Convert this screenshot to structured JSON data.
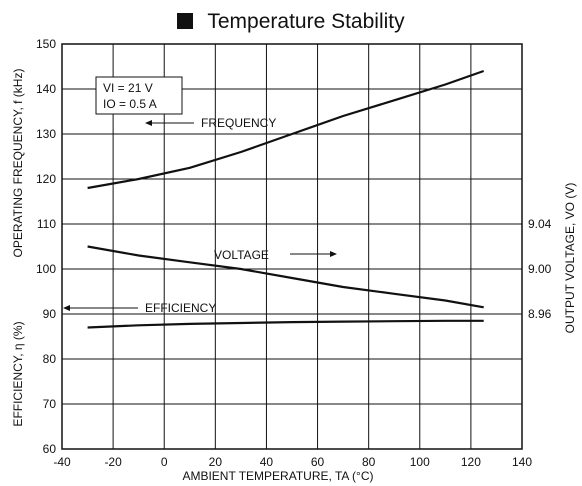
{
  "title": "Temperature Stability",
  "chart_data": {
    "type": "line",
    "xlabel": "AMBIENT TEMPERATURE, TA (°C)",
    "xlim": [
      -40,
      140
    ],
    "xticks": [
      -40,
      -20,
      0,
      20,
      40,
      60,
      80,
      100,
      120,
      140
    ],
    "ylim": [
      60,
      150
    ],
    "yticks": [
      60,
      70,
      80,
      90,
      100,
      110,
      120,
      130,
      140,
      150
    ],
    "ylabel_upper": "OPERATING FREQUENCY, f (kHz)",
    "ylabel_lower": "EFFICIENCY, η (%)",
    "y2label": "OUTPUT VOLTAGE, VO (V)",
    "y2ticks": [
      {
        "label": "9.04",
        "at": 110
      },
      {
        "label": "9.00",
        "at": 100
      },
      {
        "label": "8.96",
        "at": 90
      }
    ],
    "conditions": [
      "VI = 21 V",
      "IO = 0.5 A"
    ],
    "grid": true,
    "series": [
      {
        "name": "FREQUENCY",
        "x": [
          -30,
          -10,
          10,
          30,
          50,
          70,
          90,
          110,
          125
        ],
        "values": [
          118,
          120,
          122.5,
          126,
          130,
          134,
          137.5,
          141,
          144
        ]
      },
      {
        "name": "VOLTAGE",
        "x": [
          -30,
          -10,
          10,
          30,
          50,
          70,
          90,
          110,
          125
        ],
        "values": [
          105,
          103,
          101.5,
          100,
          98,
          96,
          94.5,
          93,
          91.5
        ]
      },
      {
        "name": "EFFICIENCY",
        "x": [
          -30,
          -10,
          10,
          30,
          50,
          70,
          90,
          110,
          125
        ],
        "values": [
          87,
          87.5,
          87.8,
          88,
          88.2,
          88.3,
          88.4,
          88.5,
          88.5
        ]
      }
    ],
    "annotations": {
      "frequency": "FREQUENCY",
      "voltage": "VOLTAGE",
      "efficiency": "EFFICIENCY"
    }
  }
}
